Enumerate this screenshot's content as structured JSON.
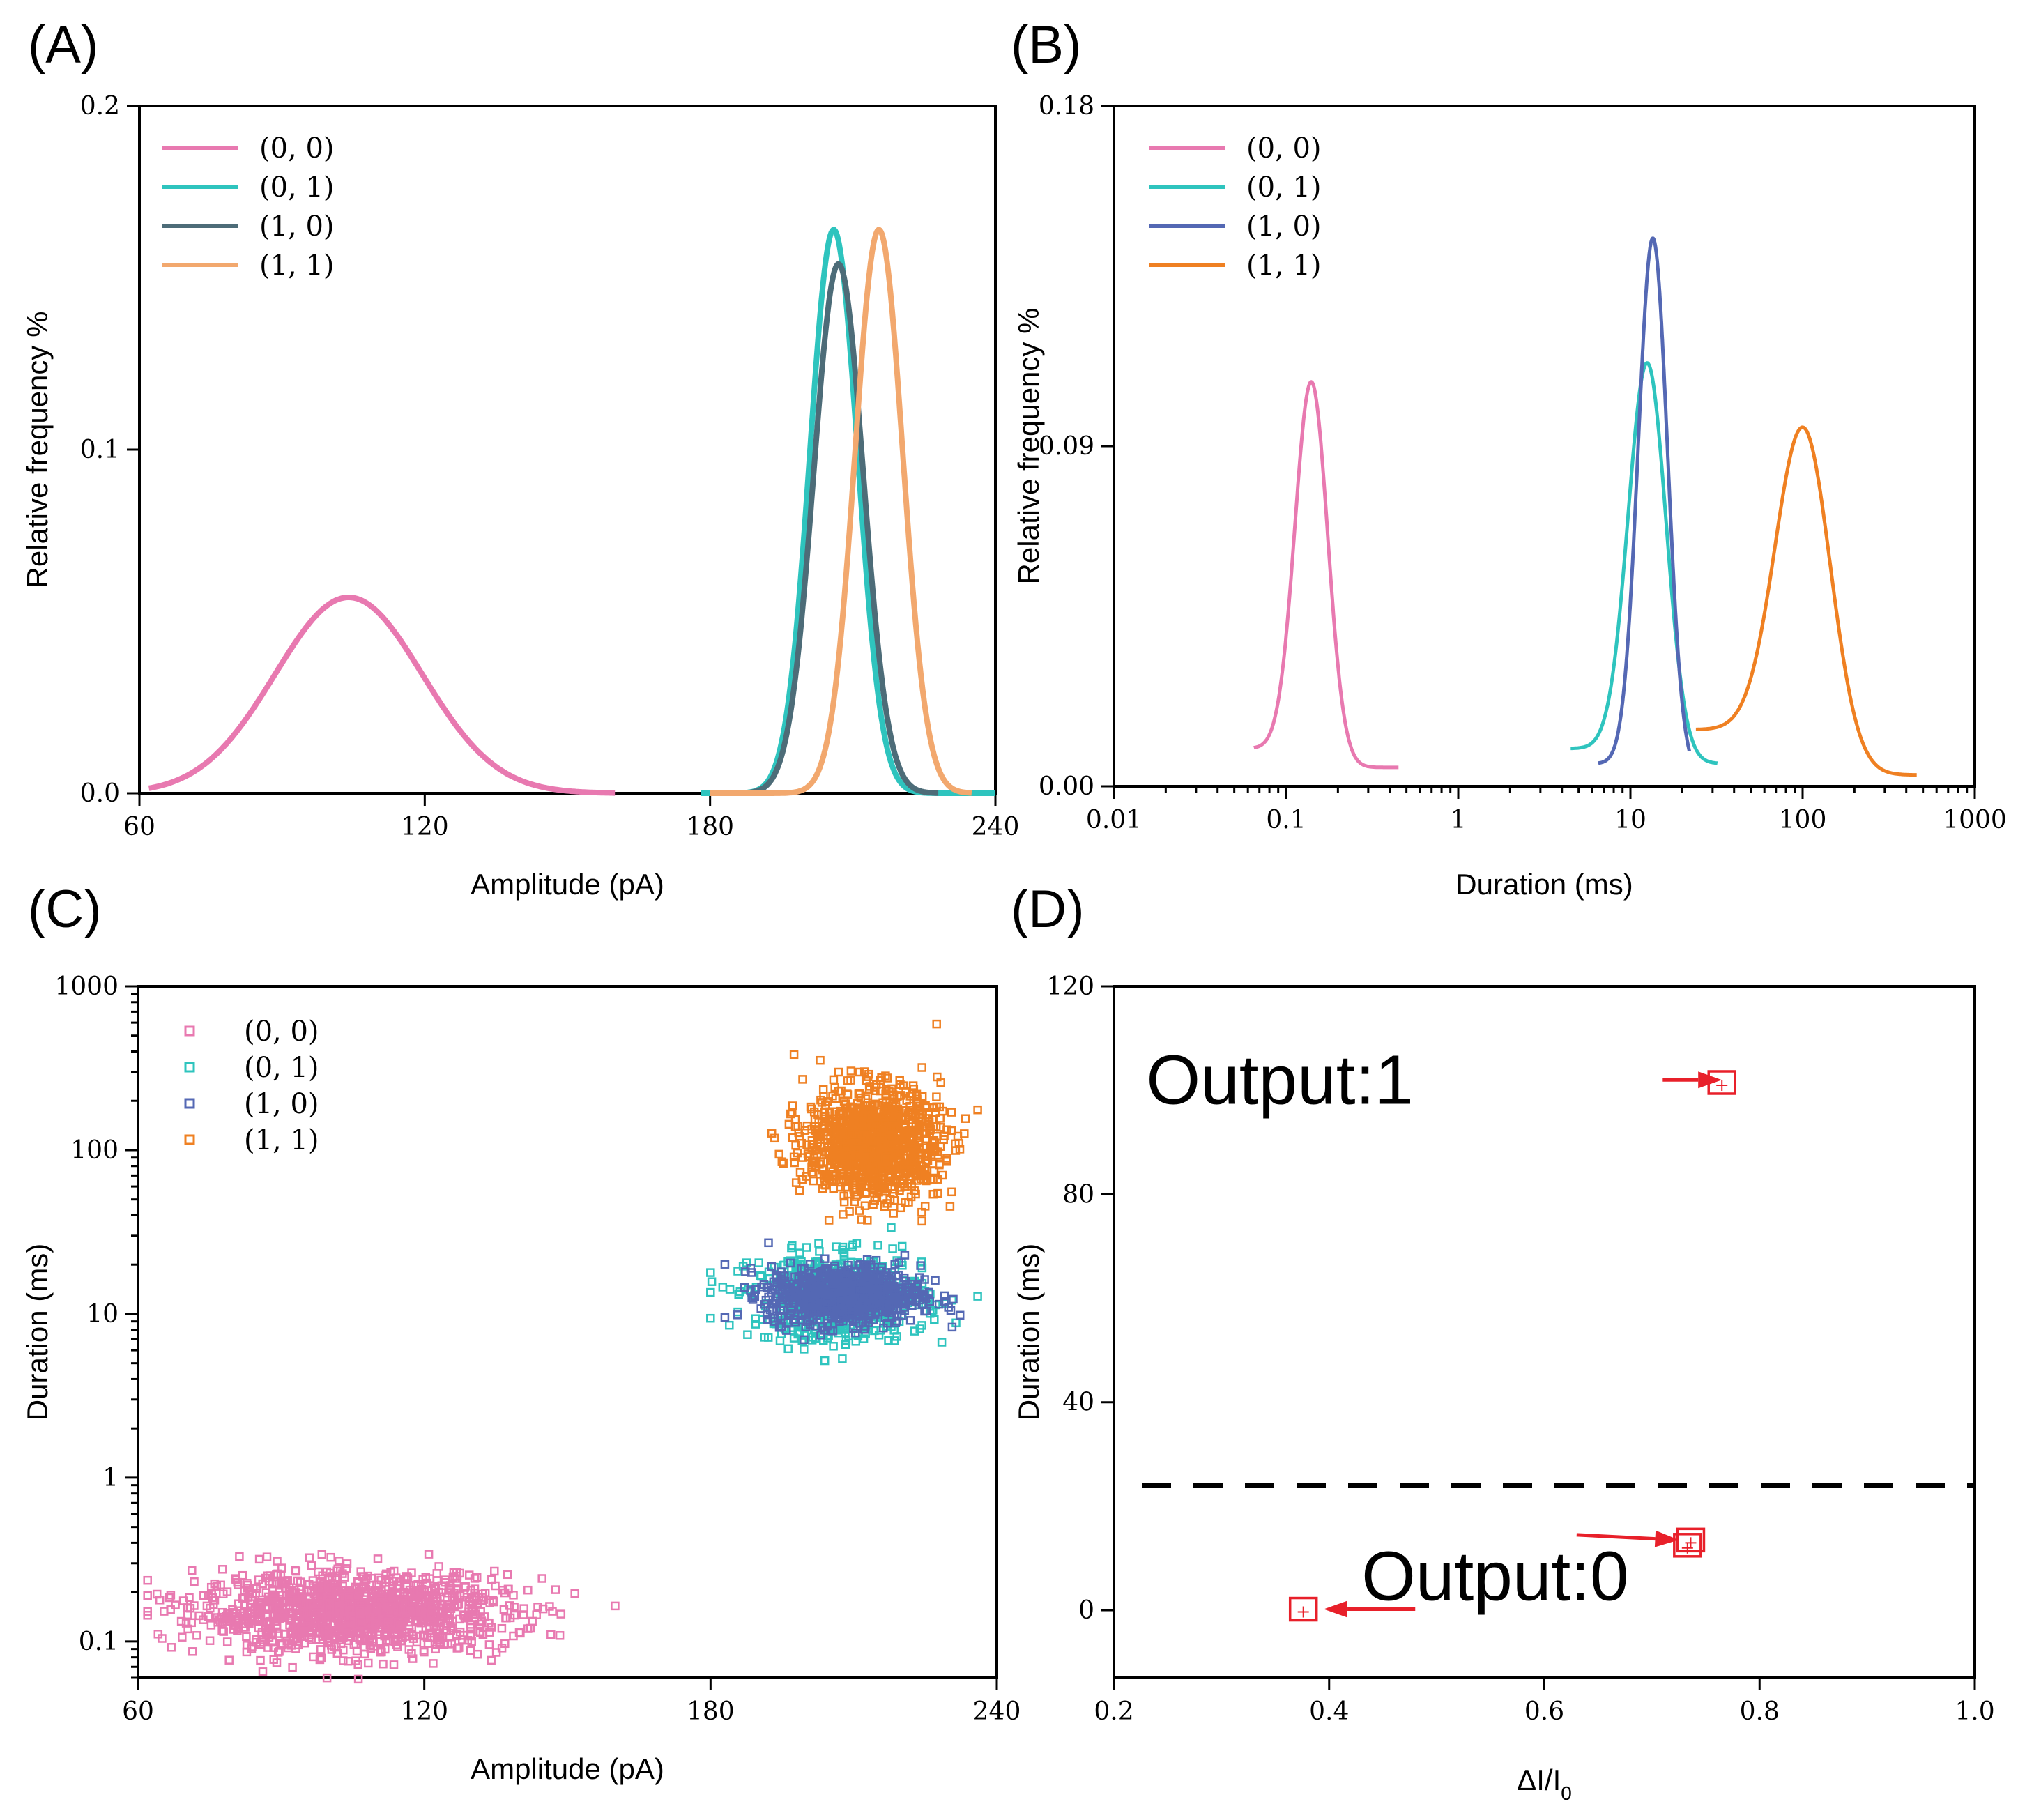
{
  "chart_data": [
    {
      "panel_label": "(A)",
      "type": "line",
      "xlabel": "Amplitude (pA)",
      "ylabel": "Relative frequency %",
      "xlim": [
        60,
        240
      ],
      "ylim": [
        0,
        0.2
      ],
      "x_ticks": [
        "60",
        "120",
        "180",
        "240"
      ],
      "y_ticks": [
        "0.0",
        "0.1",
        "0.2"
      ],
      "legend_position": "top-left",
      "series": [
        {
          "name": "(0, 0)",
          "color": "#e879b0",
          "mean": 104,
          "sd": 15.5,
          "peak": 0.057,
          "range": [
            62,
            160
          ]
        },
        {
          "name": "(0, 1)",
          "color": "#2ec4be",
          "mean": 206,
          "sd": 5.0,
          "peak": 0.164,
          "range": [
            178,
            240
          ]
        },
        {
          "name": "(1, 0)",
          "color": "#4d6c78",
          "mean": 207,
          "sd": 5.2,
          "peak": 0.154,
          "range": [
            180,
            228
          ]
        },
        {
          "name": "(1, 1)",
          "color": "#f2a86e",
          "mean": 215.5,
          "sd": 5.0,
          "peak": 0.164,
          "range": [
            180,
            235
          ]
        }
      ]
    },
    {
      "panel_label": "(B)",
      "type": "line",
      "xlabel": "Duration (ms)",
      "ylabel": "Relative frequency %",
      "xscale": "log",
      "xlim": [
        0.01,
        1000
      ],
      "ylim": [
        0,
        0.18
      ],
      "x_ticks": [
        "0.01",
        "0.1",
        "1",
        "10",
        "100",
        "1000"
      ],
      "y_ticks": [
        "0.00",
        "0.09",
        "0.18"
      ],
      "legend_position": "top-left",
      "series": [
        {
          "name": "(0, 0)",
          "color": "#e879b0",
          "mu": 0.14,
          "sigma_log10": 0.095,
          "peak": 0.107,
          "range": [
            0.065,
            0.45
          ],
          "baseline_start": 0.01,
          "baseline_end": 0.005
        },
        {
          "name": "(0, 1)",
          "color": "#2ec4be",
          "mu": 12.5,
          "sigma_log10": 0.11,
          "peak": 0.112,
          "range": [
            4.5,
            32
          ],
          "baseline_start": 0.01,
          "baseline_end": 0.006
        },
        {
          "name": "(1, 0)",
          "color": "#5468b4",
          "mu": 13.5,
          "sigma_log10": 0.085,
          "peak": 0.145,
          "range": [
            6.5,
            22
          ],
          "baseline_start": 0.006,
          "baseline_end": 0.003
        },
        {
          "name": "(1, 1)",
          "color": "#ef8022",
          "mu": 100,
          "sigma_log10": 0.16,
          "peak": 0.095,
          "range": [
            24,
            460
          ],
          "baseline_start": 0.015,
          "baseline_end": 0.003
        }
      ]
    },
    {
      "panel_label": "(C)",
      "type": "scatter",
      "xlabel": "Amplitude (pA)",
      "ylabel": "Duration (ms)",
      "yscale": "log",
      "xlim": [
        60,
        240
      ],
      "ylim": [
        0.06,
        1000
      ],
      "x_ticks": [
        "60",
        "120",
        "180",
        "240"
      ],
      "y_ticks": [
        "0.1",
        "1",
        "10",
        "100",
        "1000"
      ],
      "legend_position": "top-left",
      "series": [
        {
          "name": "(0, 0)",
          "color": "#e879b0",
          "n": 1300,
          "x_mean": 105,
          "x_sd": 16,
          "x_range": [
            62,
            160
          ],
          "y_median": 0.15,
          "y_sd_log10": 0.12
        },
        {
          "name": "(0, 1)",
          "color": "#2ec4be",
          "n": 650,
          "x_mean": 207,
          "x_sd": 9,
          "x_range": [
            180,
            236
          ],
          "y_median": 12.5,
          "y_sd_log10": 0.13
        },
        {
          "name": "(1, 0)",
          "color": "#5468b4",
          "n": 800,
          "x_mean": 208,
          "x_sd": 8,
          "x_range": [
            183,
            236
          ],
          "y_median": 13,
          "y_sd_log10": 0.09
        },
        {
          "name": "(1, 1)",
          "color": "#ef8022",
          "n": 1100,
          "x_mean": 214,
          "x_sd": 7,
          "x_range": [
            185,
            236
          ],
          "y_median": 110,
          "y_sd_log10": 0.17
        }
      ]
    },
    {
      "panel_label": "(D)",
      "type": "scatter",
      "xlabel": "ΔI/I",
      "xlabel_subscript": "0",
      "ylabel": "Duration (ms)",
      "xlim": [
        0.2,
        1.0
      ],
      "ylim": [
        -13,
        120
      ],
      "x_ticks": [
        "0.2",
        "0.4",
        "0.6",
        "0.8",
        "1.0"
      ],
      "y_ticks": [
        "0",
        "40",
        "80",
        "120"
      ],
      "threshold_y": 24,
      "marker_color": "#e8202a",
      "points": [
        {
          "x": 0.376,
          "y": 0.2
        },
        {
          "x": 0.733,
          "y": 12.5
        },
        {
          "x": 0.736,
          "y": 13.5
        },
        {
          "x": 0.765,
          "y": 101.5
        }
      ],
      "annotations": [
        {
          "text": "Output:1",
          "x": 0.23,
          "y": 102,
          "arrow_from": [
            0.71,
            102
          ],
          "arrow_to": [
            0.765,
            102
          ]
        },
        {
          "text": "Output:0",
          "x": 0.43,
          "y": 6.5,
          "arrow_from": [
            0.63,
            14.5
          ],
          "arrow_to": [
            0.725,
            13.5
          ]
        },
        {
          "text": "",
          "arrow_from": [
            0.48,
            0.2
          ],
          "arrow_to": [
            0.395,
            0.2
          ]
        }
      ]
    }
  ]
}
